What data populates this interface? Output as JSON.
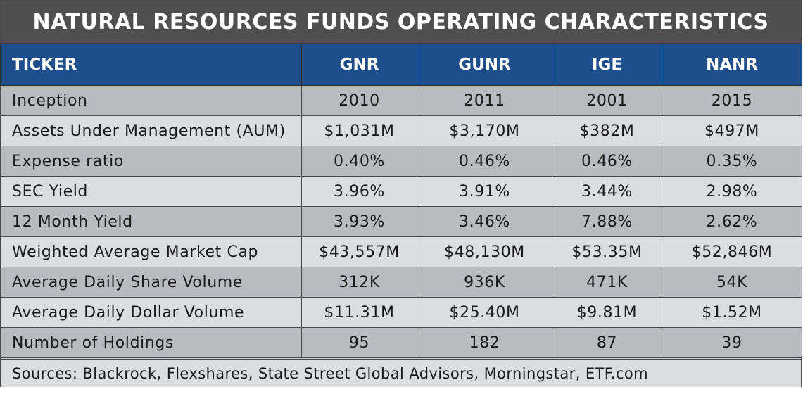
{
  "title": "NATURAL RESOURCES FUNDS OPERATING CHARACTERISTICS",
  "chart_data": {
    "type": "table",
    "title": "NATURAL RESOURCES FUNDS OPERATING CHARACTERISTICS",
    "columns": [
      "TICKER",
      "GNR",
      "GUNR",
      "IGE",
      "NANR"
    ],
    "rows": [
      [
        "Inception",
        "2010",
        "2011",
        "2001",
        "2015"
      ],
      [
        "Assets Under Management (AUM)",
        "$1,031M",
        "$3,170M",
        "$382M",
        "$497M"
      ],
      [
        "Expense ratio",
        "0.40%",
        "0.46%",
        "0.46%",
        "0.35%"
      ],
      [
        "SEC Yield",
        "3.96%",
        "3.91%",
        "3.44%",
        "2.98%"
      ],
      [
        "12 Month Yield",
        "3.93%",
        "3.46%",
        "7.88%",
        "2.62%"
      ],
      [
        "Weighted Average Market Cap",
        "$43,557M",
        "$48,130M",
        "$53.35M",
        "$52,846M"
      ],
      [
        "Average Daily Share Volume",
        "312K",
        "936K",
        "471K",
        "54K"
      ],
      [
        "Average Daily Dollar Volume",
        "$11.31M",
        "$25.40M",
        "$9.81M",
        "$1.52M"
      ],
      [
        "Number of Holdings",
        "95",
        "182",
        "87",
        "39"
      ]
    ],
    "source": "Sources: Blackrock, Flexshares, State Street Global Advisors, Morningstar, ETF.com"
  },
  "colors": {
    "title_bg": "#4f4f4f",
    "header_bg": "#1f4e8c",
    "row_dark": "#b9bbc0",
    "row_light": "#dcdde1"
  }
}
